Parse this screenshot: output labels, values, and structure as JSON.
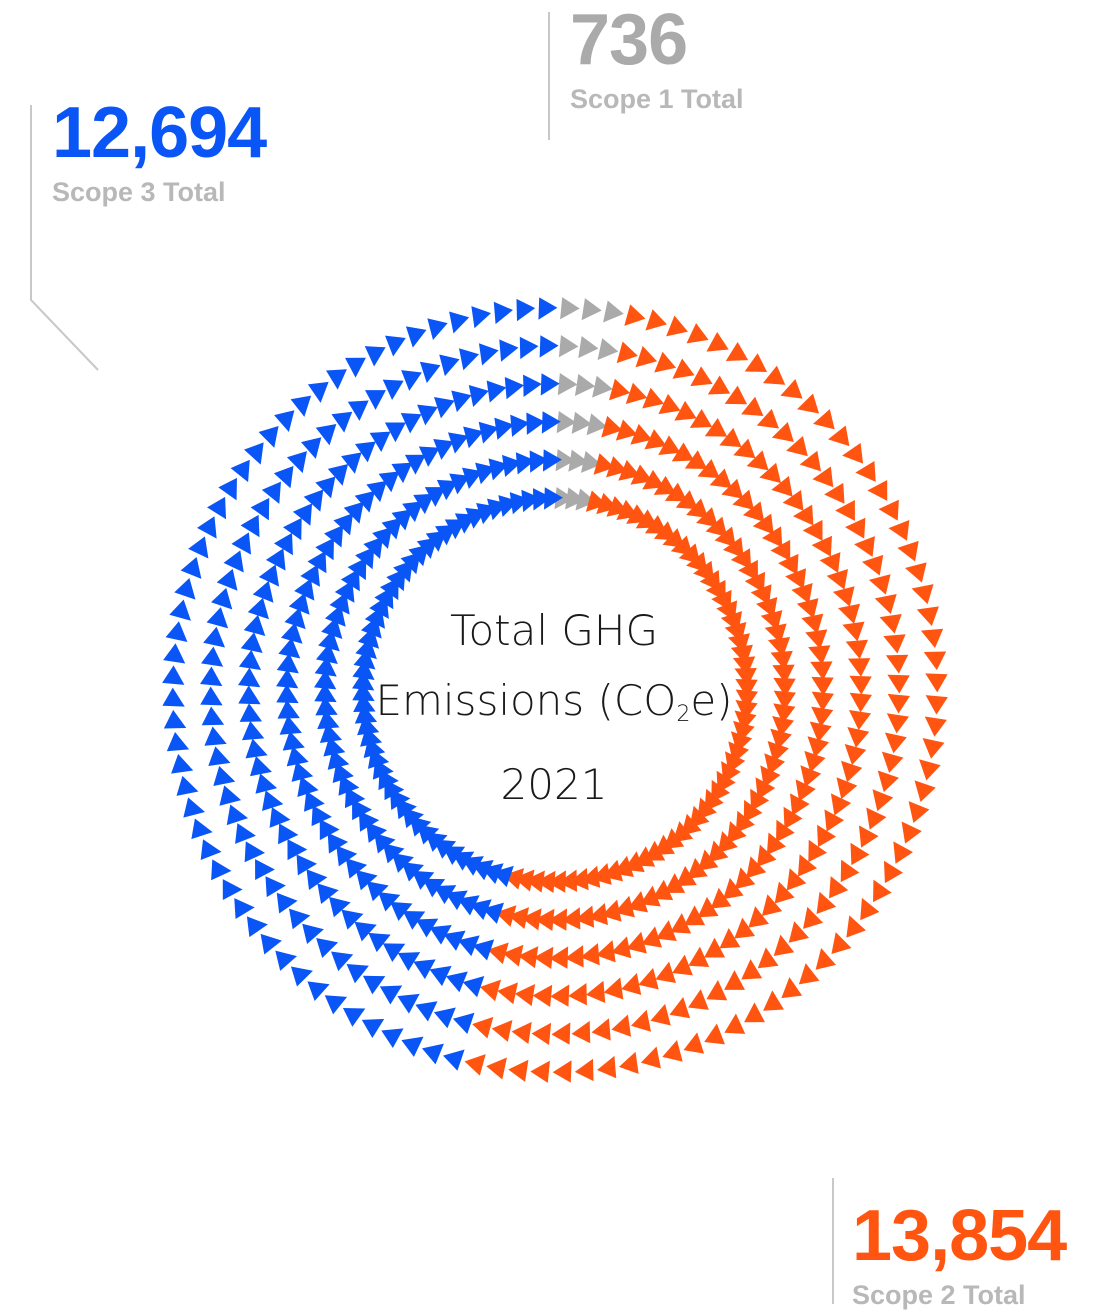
{
  "center": {
    "line1": "Total GHG",
    "line2_prefix": "Emissions (CO",
    "line2_sub": "2",
    "line2_suffix": "e)",
    "line3": "2021"
  },
  "labels": {
    "scope1": {
      "value": "736",
      "caption": "Scope 1 Total"
    },
    "scope2": {
      "value": "13,854",
      "caption": "Scope 2 Total"
    },
    "scope3": {
      "value": "12,694",
      "caption": "Scope 3 Total"
    }
  },
  "chart_data": {
    "type": "pie",
    "style": "donut of triangle markers",
    "series": [
      {
        "name": "Scope 1 Total",
        "value": 736,
        "color": "#aaaaaa"
      },
      {
        "name": "Scope 2 Total",
        "value": 13854,
        "color": "#ff5511"
      },
      {
        "name": "Scope 3 Total",
        "value": 12694,
        "color": "#0a55f5"
      }
    ]
  }
}
